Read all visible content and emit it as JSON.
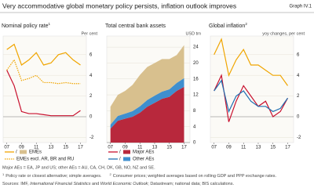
{
  "title": "Very accommodative global monetary policy persists, inflation outlook improves",
  "graph_id": "Graph IV.1",
  "legend": [
    {
      "name": "EMEs",
      "line_color": "#f0a500",
      "area_color": "#d8c08e"
    },
    {
      "name": "EMEs excl. AR, BR and RU",
      "line_color": "#f0a500",
      "dashed": true
    },
    {
      "name": "Major AEs",
      "line_color": "#c8102e",
      "area_color": "#b8283c"
    },
    {
      "name": "Other AEs",
      "line_color": "#1f6fb2",
      "area_color": "#3f8fcf"
    }
  ],
  "note": "Major AEs = EA, JP and US; other AEs = AU, CA, CH, DK, GB, NO, NZ and SE.",
  "footnotes": [
    {
      "mark": "1",
      "text": "Policy rate or closest alternative; simple averages."
    },
    {
      "mark": "2",
      "text": "Consumer prices; weighted averages based on rolling GDP and PPP exchange rates."
    }
  ],
  "sources": [
    "Sources: IMF, ",
    "International Financial Statistics",
    " and ",
    "World Economic Outlook",
    "; Datastream; national data; BIS calculations."
  ],
  "sources_italic": [
    1,
    3
  ],
  "chart_data": [
    {
      "type": "line",
      "title": "Nominal policy rate",
      "title_note": "1",
      "unit": "Per cent",
      "x": [
        7,
        8,
        9,
        10,
        11,
        12,
        13,
        14,
        15,
        16,
        17
      ],
      "xlim": [
        6.5,
        17.8
      ],
      "xticks": [
        {
          "value": 7,
          "label": "07"
        },
        {
          "value": 9,
          "label": "09"
        },
        11,
        13,
        15,
        17
      ],
      "ylim": [
        -2.5,
        7.5
      ],
      "yticks": [
        -2,
        0,
        2,
        4,
        6
      ],
      "grid": true,
      "series": [
        {
          "name": "EMEs",
          "color": "#f0a500",
          "values": [
            6.5,
            7,
            5,
            5.5,
            6.2,
            5,
            5.2,
            6,
            6.2,
            5.5,
            5
          ]
        },
        {
          "name": "EMEs excl. AR, BR and RU",
          "color": "#f0a500",
          "dashed": true,
          "values": [
            4.5,
            5.5,
            3.5,
            3.7,
            4,
            3.3,
            3.3,
            3.2,
            3.3,
            3.2,
            3.2
          ]
        },
        {
          "name": "Major AEs",
          "color": "#c8102e",
          "values": [
            4.5,
            3,
            0.5,
            0.3,
            0.3,
            0.2,
            0.1,
            0.1,
            0.1,
            0.1,
            0.6
          ]
        }
      ]
    },
    {
      "type": "area",
      "title": "Total central bank assets",
      "unit": "USD trn",
      "x": [
        7,
        8,
        9,
        10,
        11,
        12,
        13,
        14,
        15,
        16,
        17
      ],
      "xlim": [
        6.5,
        17.8
      ],
      "xticks": [
        {
          "value": 7,
          "label": "07"
        },
        {
          "value": 9,
          "label": "09"
        },
        11,
        13,
        15,
        17
      ],
      "ylim": [
        0,
        26
      ],
      "yticks": [
        0,
        4,
        8,
        12,
        16,
        20,
        24
      ],
      "grid": true,
      "series": [
        {
          "name": "Major AEs",
          "color": "#b8283c",
          "values": [
            3.5,
            5.5,
            6,
            6.5,
            7.5,
            9,
            10,
            11,
            11.5,
            13,
            14
          ]
        },
        {
          "name": "Other AEs",
          "color": "#3f8fcf",
          "values": [
            1,
            1.2,
            1.3,
            1.4,
            1.6,
            1.7,
            1.8,
            1.8,
            1.9,
            2,
            2.2
          ]
        },
        {
          "name": "EMEs",
          "color": "#d8c08e",
          "values": [
            4.5,
            5.3,
            5.7,
            6.6,
            7.9,
            8.3,
            8.2,
            8.2,
            7.6,
            7,
            8.3
          ]
        }
      ]
    },
    {
      "type": "line",
      "title": "Global inflation",
      "title_note": "2",
      "unit": "yoy changes, per cent",
      "x": [
        7,
        8,
        9,
        10,
        11,
        12,
        13,
        14,
        15,
        16,
        17
      ],
      "xlim": [
        6.5,
        17.8
      ],
      "xticks": [
        {
          "value": 7,
          "label": "07"
        },
        {
          "value": 9,
          "label": "09"
        },
        11,
        13,
        15,
        17
      ],
      "ylim": [
        -2.5,
        7.5
      ],
      "yticks": [
        -2,
        0,
        2,
        4,
        6
      ],
      "grid": true,
      "series": [
        {
          "name": "EMEs",
          "color": "#f0a500",
          "values": [
            6,
            7.5,
            4,
            5.5,
            6.5,
            5,
            5,
            4.5,
            4,
            4,
            3
          ]
        },
        {
          "name": "Major AEs",
          "color": "#c8102e",
          "values": [
            2.5,
            4,
            -0.5,
            1.5,
            3,
            2,
            1,
            1.5,
            0,
            0.5,
            1.8
          ]
        },
        {
          "name": "Other AEs",
          "color": "#1f6fb2",
          "values": [
            2.5,
            3.5,
            0.5,
            2,
            2.5,
            1.5,
            1,
            1,
            0.5,
            0.8,
            1.8
          ]
        }
      ]
    }
  ]
}
